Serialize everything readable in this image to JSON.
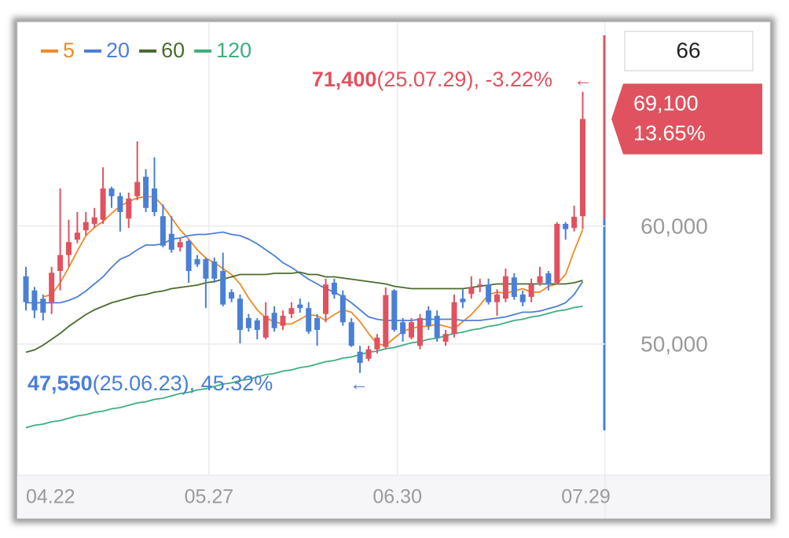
{
  "chart_data": {
    "type": "candlestick",
    "categories": [
      "04.22",
      null,
      null,
      null,
      null,
      null,
      null,
      null,
      null,
      null,
      null,
      null,
      null,
      null,
      null,
      null,
      null,
      null,
      null,
      null,
      null,
      "05.27",
      null,
      null,
      null,
      null,
      null,
      null,
      null,
      null,
      null,
      null,
      null,
      null,
      null,
      null,
      null,
      null,
      null,
      null,
      null,
      null,
      null,
      "06.30",
      null,
      null,
      null,
      null,
      null,
      null,
      null,
      null,
      null,
      null,
      null,
      null,
      null,
      null,
      null,
      null,
      null,
      null,
      null,
      null,
      null,
      "07.29"
    ],
    "open": [
      55750,
      54550,
      53850,
      53550,
      56200,
      57550,
      58850,
      59650,
      60200,
      60550,
      63200,
      62550,
      60650,
      62550,
      64200,
      63200,
      60850,
      59350,
      58200,
      58750,
      57200,
      57200,
      57000,
      56200,
      54400,
      53850,
      52200,
      52000,
      50550,
      52650,
      51550,
      52550,
      53350,
      53050,
      52200,
      52550,
      55200,
      54150,
      51850,
      49350,
      48750,
      49550,
      49750,
      54550,
      51850,
      50550,
      49850,
      52850,
      52400,
      50200,
      50850,
      53850,
      54250,
      54950,
      55050,
      53550,
      53850,
      55650,
      54200,
      54000,
      55200,
      56000,
      55200,
      60200,
      59850,
      60850
    ],
    "high": [
      56550,
      54850,
      54200,
      56550,
      63200,
      60550,
      61200,
      61200,
      61550,
      65000,
      63350,
      62850,
      62850,
      67200,
      64850,
      65850,
      61850,
      60850,
      59000,
      58850,
      57550,
      57350,
      57350,
      57750,
      54650,
      54200,
      52550,
      52200,
      53550,
      53200,
      52850,
      53550,
      53850,
      53550,
      52550,
      55550,
      55550,
      54550,
      52200,
      49850,
      49850,
      50850,
      54800,
      54650,
      52200,
      52200,
      52550,
      53200,
      52850,
      51200,
      54200,
      54650,
      55750,
      55550,
      55550,
      54650,
      56400,
      56000,
      54550,
      55550,
      56550,
      56200,
      60350,
      60350,
      61750,
      71400
    ],
    "low": [
      52850,
      52200,
      52000,
      52550,
      54550,
      56550,
      58550,
      59200,
      59850,
      60200,
      61550,
      59550,
      59850,
      62200,
      61200,
      60850,
      58200,
      57750,
      57850,
      55200,
      56550,
      53050,
      55200,
      53200,
      53550,
      50050,
      51050,
      50400,
      50400,
      51050,
      51200,
      52200,
      52650,
      50850,
      49850,
      51850,
      53850,
      51550,
      49750,
      47550,
      48550,
      49200,
      49550,
      51050,
      50200,
      50400,
      49550,
      51200,
      50200,
      49850,
      50550,
      53050,
      53850,
      54400,
      53350,
      52400,
      53550,
      53750,
      53200,
      53550,
      54950,
      54550,
      55050,
      58850,
      59550,
      59750
    ],
    "close": [
      53550,
      52850,
      52650,
      56050,
      57550,
      58650,
      59450,
      60350,
      60750,
      63200,
      62550,
      61200,
      62350,
      63750,
      61550,
      61200,
      58350,
      58000,
      58650,
      56200,
      56750,
      55550,
      55550,
      53350,
      53850,
      51200,
      51350,
      51200,
      52400,
      51350,
      52400,
      53050,
      53050,
      51050,
      51200,
      55050,
      54200,
      51850,
      49850,
      48400,
      49550,
      50550,
      54150,
      51200,
      50850,
      51850,
      52200,
      51550,
      50550,
      50850,
      53550,
      53550,
      54800,
      55050,
      53550,
      54200,
      55750,
      54000,
      53550,
      55050,
      55750,
      55050,
      60200,
      59750,
      60800,
      69100
    ],
    "up_color": "#e0525f",
    "down_color": "#4a7fd6",
    "series": [
      {
        "name": "5",
        "color": "#f08a24",
        "values": [
          null,
          null,
          54000,
          54200,
          55200,
          56500,
          57900,
          59200,
          59900,
          60400,
          61100,
          61700,
          62100,
          62400,
          62500,
          62500,
          61700,
          60700,
          59700,
          58900,
          58000,
          57300,
          56900,
          56400,
          55900,
          55100,
          53900,
          52900,
          52200,
          51900,
          51700,
          51700,
          52100,
          52500,
          52400,
          52000,
          52500,
          52900,
          52700,
          51900,
          50900,
          50000,
          49900,
          50500,
          51100,
          51300,
          51500,
          51500,
          51700,
          51500,
          51300,
          51900,
          52500,
          53300,
          54200,
          54400,
          54300,
          54500,
          54700,
          54400,
          54400,
          54900,
          55100,
          55900,
          57900,
          59700
        ]
      },
      {
        "name": "20",
        "color": "#4f7fd4",
        "values": [
          53500,
          53500,
          53500,
          53500,
          53500,
          53700,
          54000,
          54500,
          55100,
          55700,
          56500,
          57200,
          57500,
          58000,
          58400,
          58400,
          58500,
          58900,
          59000,
          59200,
          59300,
          59300,
          59400,
          59500,
          59300,
          59200,
          58900,
          58500,
          58000,
          57500,
          56900,
          56500,
          56000,
          55500,
          55100,
          54700,
          54400,
          54000,
          53500,
          52900,
          52300,
          52100,
          52000,
          52000,
          52000,
          52000,
          52100,
          52100,
          52100,
          52100,
          52100,
          52000,
          52000,
          52000,
          52100,
          52200,
          52300,
          52500,
          52700,
          52700,
          52800,
          53000,
          53200,
          53500,
          54200,
          55300
        ]
      },
      {
        "name": "60",
        "color": "#4b6b2e",
        "values": [
          49300,
          49500,
          49900,
          50400,
          50900,
          51500,
          52000,
          52500,
          52900,
          53200,
          53500,
          53700,
          53900,
          54100,
          54200,
          54400,
          54500,
          54700,
          54800,
          54900,
          55000,
          55200,
          55300,
          55500,
          55700,
          55900,
          55900,
          55900,
          55900,
          56000,
          56000,
          56000,
          56100,
          55900,
          55900,
          55700,
          55700,
          55600,
          55500,
          55400,
          55300,
          55200,
          55100,
          54900,
          54800,
          54700,
          54700,
          54700,
          54700,
          54700,
          54700,
          54700,
          54800,
          54900,
          55000,
          55100,
          55100,
          55100,
          55100,
          55100,
          55100,
          55100,
          55100,
          55100,
          55200,
          55400
        ]
      },
      {
        "name": "120",
        "color": "#3fae7e",
        "values": [
          42900,
          43100,
          43200,
          43400,
          43500,
          43700,
          43900,
          44000,
          44200,
          44300,
          44500,
          44600,
          44800,
          45000,
          45100,
          45300,
          45400,
          45600,
          45800,
          45900,
          46100,
          46200,
          46400,
          46600,
          46700,
          46900,
          47000,
          47200,
          47400,
          47500,
          47700,
          47800,
          48000,
          48100,
          48300,
          48500,
          48600,
          48800,
          48900,
          49100,
          49300,
          49400,
          49600,
          49700,
          49900,
          50100,
          50200,
          50400,
          50500,
          50700,
          50900,
          51000,
          51200,
          51300,
          51500,
          51600,
          51800,
          52000,
          52100,
          52300,
          52400,
          52600,
          52800,
          52900,
          53100,
          53200
        ]
      }
    ],
    "ylim": [
      38870,
      77330
    ],
    "yticks": [
      {
        "value": 60000,
        "label": "60,000"
      },
      {
        "value": 50000,
        "label": "50,000"
      }
    ],
    "grid": true,
    "high_annotation": {
      "price": "71,400",
      "detail": "(25.07.29), -3.22%",
      "arrow": "←",
      "color": "#e0525f"
    },
    "low_annotation": {
      "price": "47,550",
      "detail": "(25.06.23), 45.32%",
      "arrow": "←",
      "color": "#4a7fd6"
    },
    "price_tag": {
      "price": "69,100",
      "change": "13.65%",
      "color": "#e0525f"
    },
    "period_box": "66"
  }
}
